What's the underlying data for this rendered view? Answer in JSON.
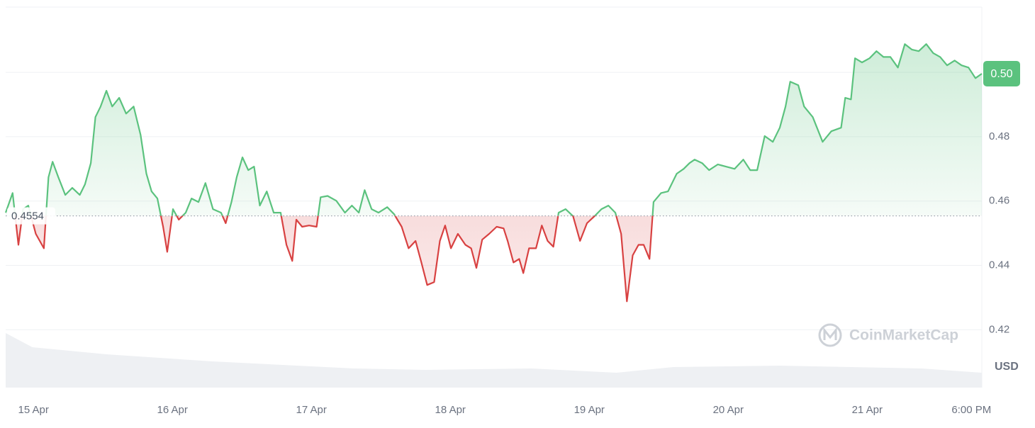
{
  "chart_data": {
    "type": "line",
    "series": [
      {
        "name": "Price",
        "color": "#5bc27e",
        "down_color": "#d84141",
        "x": [
          -4.8,
          -3.6,
          -2.6,
          -1.8,
          -0.9,
          0.4,
          1.8,
          2.6,
          3.3,
          4.3,
          5.5,
          6.7,
          8.0,
          8.9,
          9.9,
          10.7,
          11.6,
          12.6,
          13.6,
          14.8,
          16.0,
          17.3,
          18.5,
          19.5,
          20.4,
          21.4,
          22.4,
          23.1,
          24.1,
          25.1,
          26.3,
          27.3,
          28.5,
          29.7,
          31.0,
          32.4,
          33.2,
          34.2,
          35.1,
          36.1,
          37.1,
          38.1,
          39.1,
          40.3,
          41.5,
          42.7,
          43.7,
          44.7,
          45.4,
          46.4,
          47.6,
          48.9,
          49.6,
          50.8,
          52.3,
          53.8,
          55.0,
          56.2,
          57.2,
          58.4,
          59.6,
          61.1,
          62.3,
          63.6,
          64.8,
          66.0,
          67.0,
          68.0,
          69.2,
          70.2,
          71.1,
          72.1,
          73.3,
          74.6,
          75.6,
          76.5,
          77.5,
          78.7,
          80.0,
          81.2,
          81.9,
          82.9,
          83.9,
          84.6,
          85.6,
          86.8,
          87.8,
          88.8,
          89.8,
          90.7,
          91.9,
          93.2,
          94.4,
          95.6,
          96.9,
          98.1,
          99.3,
          100.5,
          101.5,
          102.5,
          103.5,
          104.5,
          105.4,
          106.4,
          107.1,
          108.4,
          109.6,
          111.1,
          112.3,
          113.3,
          114.2,
          115.5,
          116.7,
          118.2,
          119.6,
          121.1,
          122.6,
          123.8,
          125.0,
          126.3,
          127.7,
          128.9,
          129.9,
          130.7,
          132.1,
          133.1,
          134.6,
          136.3,
          137.8,
          139.5,
          140.2,
          141.2,
          141.9,
          143.1,
          144.4,
          145.6,
          146.8,
          148.0,
          149.3,
          150.5,
          151.7,
          152.9,
          154.2,
          155.4,
          156.6,
          157.8,
          159.1,
          160.3,
          161.5,
          162.7,
          163.8
        ],
        "values": [
          0.4564,
          0.4625,
          0.4464,
          0.4575,
          0.4586,
          0.4498,
          0.4453,
          0.4674,
          0.4722,
          0.4674,
          0.4619,
          0.4641,
          0.4619,
          0.4652,
          0.4718,
          0.4861,
          0.4894,
          0.4943,
          0.4894,
          0.4921,
          0.4872,
          0.4894,
          0.4806,
          0.4685,
          0.463,
          0.4608,
          0.452,
          0.4442,
          0.4575,
          0.4542,
          0.4564,
          0.4608,
          0.4597,
          0.4656,
          0.4575,
          0.4564,
          0.4531,
          0.4597,
          0.4674,
          0.4736,
          0.4696,
          0.4707,
          0.4586,
          0.463,
          0.4564,
          0.4564,
          0.4464,
          0.4414,
          0.4542,
          0.452,
          0.4524,
          0.452,
          0.4612,
          0.4616,
          0.4601,
          0.4564,
          0.4586,
          0.4564,
          0.4634,
          0.4575,
          0.4564,
          0.4581,
          0.4559,
          0.452,
          0.4453,
          0.4476,
          0.4409,
          0.4339,
          0.4348,
          0.4476,
          0.4524,
          0.4453,
          0.4498,
          0.4464,
          0.4453,
          0.4392,
          0.448,
          0.4498,
          0.452,
          0.4515,
          0.4476,
          0.4409,
          0.442,
          0.4376,
          0.4453,
          0.4453,
          0.4524,
          0.4476,
          0.4458,
          0.4564,
          0.4575,
          0.4553,
          0.4476,
          0.4531,
          0.4553,
          0.4575,
          0.4586,
          0.4564,
          0.4498,
          0.4288,
          0.4431,
          0.4464,
          0.4464,
          0.442,
          0.4597,
          0.4625,
          0.463,
          0.4685,
          0.47,
          0.4718,
          0.4729,
          0.4718,
          0.4696,
          0.4714,
          0.4707,
          0.47,
          0.4729,
          0.4696,
          0.4696,
          0.4802,
          0.4784,
          0.4828,
          0.4894,
          0.4971,
          0.496,
          0.4894,
          0.4861,
          0.4784,
          0.4817,
          0.4828,
          0.4921,
          0.4916,
          0.5044,
          0.5031,
          0.5044,
          0.5066,
          0.5048,
          0.5048,
          0.5015,
          0.5088,
          0.5071,
          0.5066,
          0.5088,
          0.506,
          0.5048,
          0.5022,
          0.5037,
          0.5022,
          0.5015,
          0.4982,
          0.4996
        ]
      }
    ],
    "baseline": 0.4554,
    "current": {
      "value": 0.4996,
      "label": "0.50"
    },
    "volume": {
      "x": [
        -4.8,
        -0.2,
        12.6,
        30.9,
        55.4,
        67.7,
        86.0,
        100.7,
        110.5,
        128.9,
        153.4,
        163.8
      ],
      "values": [
        77,
        57,
        47,
        37,
        27,
        25,
        27,
        21,
        29,
        31,
        27,
        21
      ]
    },
    "xlim": [
      -4.8,
      163.8
    ],
    "ylim": [
      0.402,
      0.5203
    ],
    "xticks": [
      {
        "value": 0,
        "label": "15 Apr"
      },
      {
        "value": 24,
        "label": "16 Apr"
      },
      {
        "value": 48,
        "label": "17 Apr"
      },
      {
        "value": 72,
        "label": "18 Apr"
      },
      {
        "value": 96,
        "label": "19 Apr"
      },
      {
        "value": 120,
        "label": "20 Apr"
      },
      {
        "value": 144,
        "label": "21 Apr"
      },
      {
        "value": 162,
        "label": "6:00 PM"
      }
    ],
    "yticks": [
      0.42,
      0.44,
      0.46,
      0.48,
      {
        "value": 0.5,
        "label": "0.50"
      }
    ],
    "currency": "USD",
    "watermark": "CoinMarketCap",
    "grid": true
  }
}
